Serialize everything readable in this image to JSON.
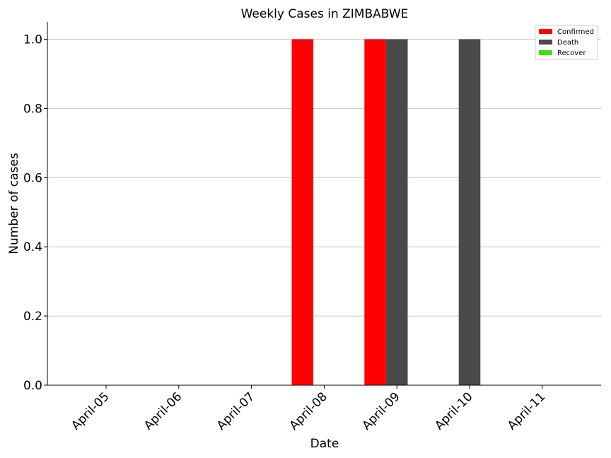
{
  "chart_data": {
    "type": "bar",
    "title": "Weekly Cases in ZIMBABWE",
    "xlabel": "Date",
    "ylabel": "Number of cases",
    "categories": [
      "April-05",
      "April-06",
      "April-07",
      "April-08",
      "April-09",
      "April-10",
      "April-11"
    ],
    "series": [
      {
        "name": "Confirmed",
        "color": "#ff0000",
        "values": [
          0,
          0,
          0,
          1,
          1,
          0,
          0
        ]
      },
      {
        "name": "Death",
        "color": "#4a4a4a",
        "values": [
          0,
          0,
          0,
          0,
          1,
          1,
          0
        ]
      },
      {
        "name": "Recover",
        "color": "#44dd11",
        "values": [
          0,
          0,
          0,
          0,
          0,
          0,
          0
        ]
      }
    ],
    "ylim": [
      0,
      1.05
    ],
    "yticks": [
      "0.0",
      "0.2",
      "0.4",
      "0.6",
      "0.8",
      "1.0"
    ],
    "grid": "horizontal",
    "legend": "top-right"
  }
}
